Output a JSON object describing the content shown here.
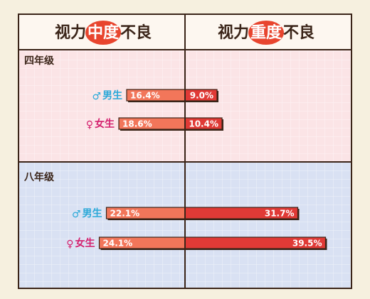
{
  "columns": {
    "moderate": {
      "prefix": "视力",
      "highlight": "中度",
      "suffix": "不良"
    },
    "severe": {
      "prefix": "视力",
      "highlight": "重度",
      "suffix": "不良"
    }
  },
  "colors": {
    "male": "#2aa8d8",
    "female": "#d4206e",
    "moderate_bar": "#f2765a",
    "severe_bar": "#e03a36",
    "highlight_blob": "#e8452e",
    "panel_top": "#fbe4e6",
    "panel_bottom": "#d9e1f3"
  },
  "chart_data": {
    "type": "bar",
    "orientation": "horizontal-diverging",
    "series": [
      {
        "name": "视力中度不良",
        "side": "left"
      },
      {
        "name": "视力重度不良",
        "side": "right"
      }
    ],
    "groups": [
      {
        "name": "四年级",
        "rows": [
          {
            "symbol": "♂",
            "label": "男生",
            "gender": "male",
            "moderate": 16.4,
            "severe": 9.0,
            "moderate_label": "16.4%",
            "severe_label": "9.0%"
          },
          {
            "symbol": "♀",
            "label": "女生",
            "gender": "female",
            "moderate": 18.6,
            "severe": 10.4,
            "moderate_label": "18.6%",
            "severe_label": "10.4%"
          }
        ]
      },
      {
        "name": "八年级",
        "rows": [
          {
            "symbol": "♂",
            "label": "男生",
            "gender": "male",
            "moderate": 22.1,
            "severe": 31.7,
            "moderate_label": "22.1%",
            "severe_label": "31.7%"
          },
          {
            "symbol": "♀",
            "label": "女生",
            "gender": "female",
            "moderate": 24.1,
            "severe": 39.5,
            "moderate_label": "24.1%",
            "severe_label": "39.5%"
          }
        ]
      }
    ]
  }
}
